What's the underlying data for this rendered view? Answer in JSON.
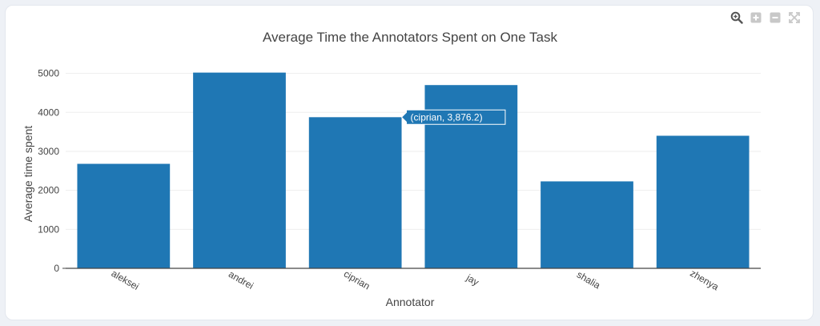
{
  "modebar": {
    "icons": [
      "zoom-icon",
      "zoom-in-icon",
      "zoom-out-icon",
      "autoscale-icon"
    ]
  },
  "colors": {
    "bar": "#1f77b4",
    "grid": "#eeeeee",
    "axis_line": "#444444",
    "text": "#444444"
  },
  "hover": {
    "category": "ciprian",
    "label": "(ciprian, 3,876.2)"
  },
  "chart_data": {
    "type": "bar",
    "title": "Average Time the Annotators Spent on One Task",
    "xlabel": "Annotator",
    "ylabel": "Average time spent",
    "categories": [
      "aleksei",
      "andrei",
      "ciprian",
      "jay",
      "shalia",
      "zhenya"
    ],
    "values": [
      2680,
      5020,
      3876.2,
      4700,
      2230,
      3400
    ],
    "ylim": [
      0,
      5300
    ],
    "yticks": [
      0,
      1000,
      2000,
      3000,
      4000,
      5000
    ],
    "ytick_labels": [
      "0",
      "1000",
      "2000",
      "3000",
      "4000",
      "5000"
    ],
    "grid": true,
    "legend": "none"
  }
}
